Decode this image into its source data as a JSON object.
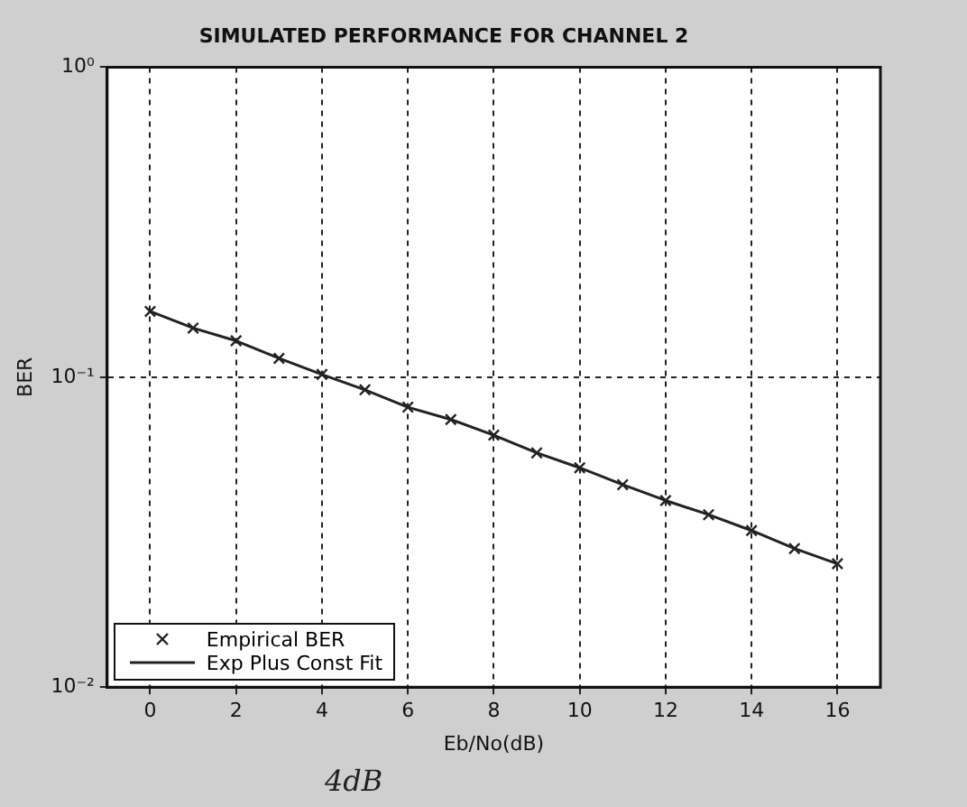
{
  "chart_data": {
    "type": "line",
    "title": "SIMULATED PERFORMANCE FOR CHANNEL 2",
    "xlabel": "Eb/No(dB)",
    "ylabel": "BER",
    "annotations": [
      "4dB"
    ],
    "x": [
      0,
      1,
      2,
      3,
      4,
      5,
      6,
      7,
      8,
      9,
      10,
      11,
      12,
      13,
      14,
      15,
      16
    ],
    "series": [
      {
        "name": "Empirical BER",
        "type": "scatter",
        "marker": "cross",
        "color": "#222222",
        "values": [
          0.163,
          0.144,
          0.131,
          0.115,
          0.102,
          0.091,
          0.08,
          0.073,
          0.065,
          0.057,
          0.051,
          0.045,
          0.04,
          0.036,
          0.032,
          0.028,
          0.025
        ]
      },
      {
        "name": "Exp Plus Const Fit",
        "marker": "none",
        "line_style": "solid",
        "color": "#222222",
        "values": [
          0.163,
          0.144,
          0.131,
          0.115,
          0.102,
          0.091,
          0.08,
          0.073,
          0.065,
          0.057,
          0.051,
          0.045,
          0.04,
          0.036,
          0.032,
          0.028,
          0.025
        ]
      }
    ],
    "log": "y",
    "xlim": [
      -1,
      17
    ],
    "xticks": [
      0,
      2,
      4,
      6,
      8,
      10,
      12,
      14,
      16
    ],
    "ylim": [
      0.01,
      1
    ],
    "yticks": [
      {
        "value": 0.01,
        "label": "10⁻²"
      },
      {
        "value": 0.1,
        "label": "10⁻¹"
      },
      {
        "value": 1,
        "label": "10⁰"
      }
    ],
    "grid": true,
    "legend": "bottom left"
  }
}
